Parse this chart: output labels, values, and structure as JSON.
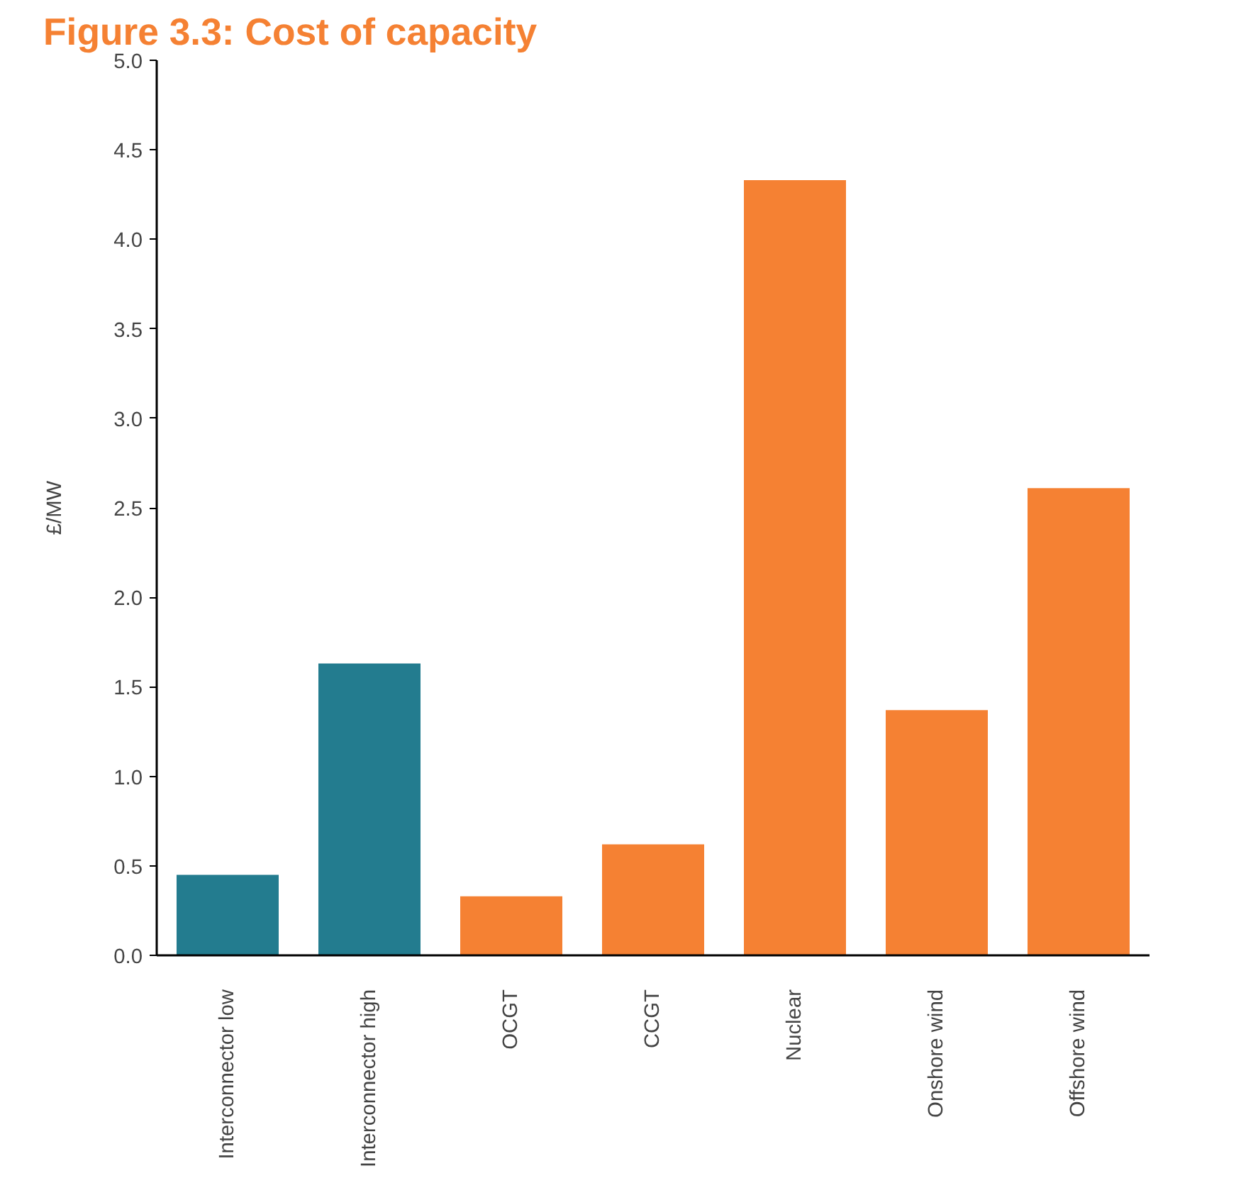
{
  "chart_data": {
    "type": "bar",
    "title": "Figure 3.3: Cost of capacity",
    "ylabel": "£/MW",
    "categories": [
      "Interconnector low",
      "Interconnector high",
      "OCGT",
      "CCGT",
      "Nuclear",
      "Onshore wind",
      "Offshore wind"
    ],
    "values": [
      0.45,
      1.63,
      0.33,
      0.62,
      4.33,
      1.37,
      2.61
    ],
    "colors": [
      "#237c8f",
      "#237c8f",
      "#f58133",
      "#f58133",
      "#f58133",
      "#f58133",
      "#f58133"
    ],
    "ylim": [
      0,
      5
    ],
    "yticks": [
      {
        "value": 0,
        "label": "0.0"
      },
      {
        "value": 0.5,
        "label": "0.5"
      },
      {
        "value": 1,
        "label": "1.0"
      },
      {
        "value": 1.5,
        "label": "1.5"
      },
      {
        "value": 2,
        "label": "2.0"
      },
      {
        "value": 2.5,
        "label": "2.5"
      },
      {
        "value": 3,
        "label": "3.0"
      },
      {
        "value": 3.5,
        "label": "3.5"
      },
      {
        "value": 4,
        "label": "4.0"
      },
      {
        "value": 4.5,
        "label": "4.5"
      },
      {
        "value": 5,
        "label": "5.0"
      }
    ],
    "grid": false
  }
}
